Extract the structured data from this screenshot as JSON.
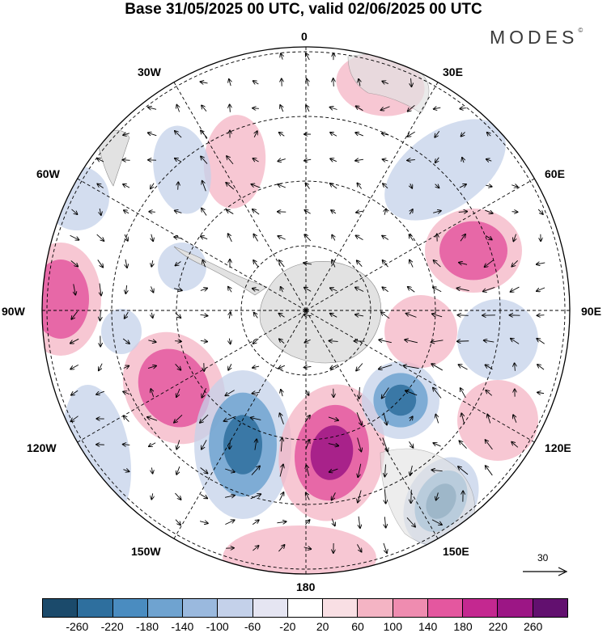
{
  "title": "Base 31/05/2025 00 UTC, valid 02/06/2025 00 UTC",
  "brand": "MODES",
  "brand_mark": "©",
  "longitude_labels": {
    "lon_0": "0",
    "lon_30e": "30E",
    "lon_60e": "60E",
    "lon_90e": "90E",
    "lon_120e": "120E",
    "lon_150e": "150E",
    "lon_180": "180",
    "lon_150w": "150W",
    "lon_120w": "120W",
    "lon_90w": "90W",
    "lon_60w": "60W",
    "lon_30w": "30W"
  },
  "reference_vector": "30",
  "colorbar": {
    "colors": [
      "#1b4a6b",
      "#2e6f9e",
      "#4a8cc0",
      "#6fa3d0",
      "#9ab9de",
      "#c4d1ea",
      "#e5e5f2",
      "#ffffff",
      "#f9dfe4",
      "#f4b4c4",
      "#ef8cb0",
      "#e4579f",
      "#c42890",
      "#9c1685",
      "#62106f"
    ],
    "labels": [
      "-260",
      "-220",
      "-180",
      "-140",
      "-100",
      "-60",
      "-20",
      "20",
      "60",
      "100",
      "140",
      "180",
      "220",
      "260"
    ]
  },
  "anomaly_colors": {
    "blue_dark": "#2e6f9e",
    "blue_mid": "#6fa3d0",
    "blue_light": "#c4d1ea",
    "pink_light": "#f4b4c4",
    "pink_mid": "#e4579f",
    "purple": "#9c1685",
    "land_gray": "#e2e2e2"
  }
}
